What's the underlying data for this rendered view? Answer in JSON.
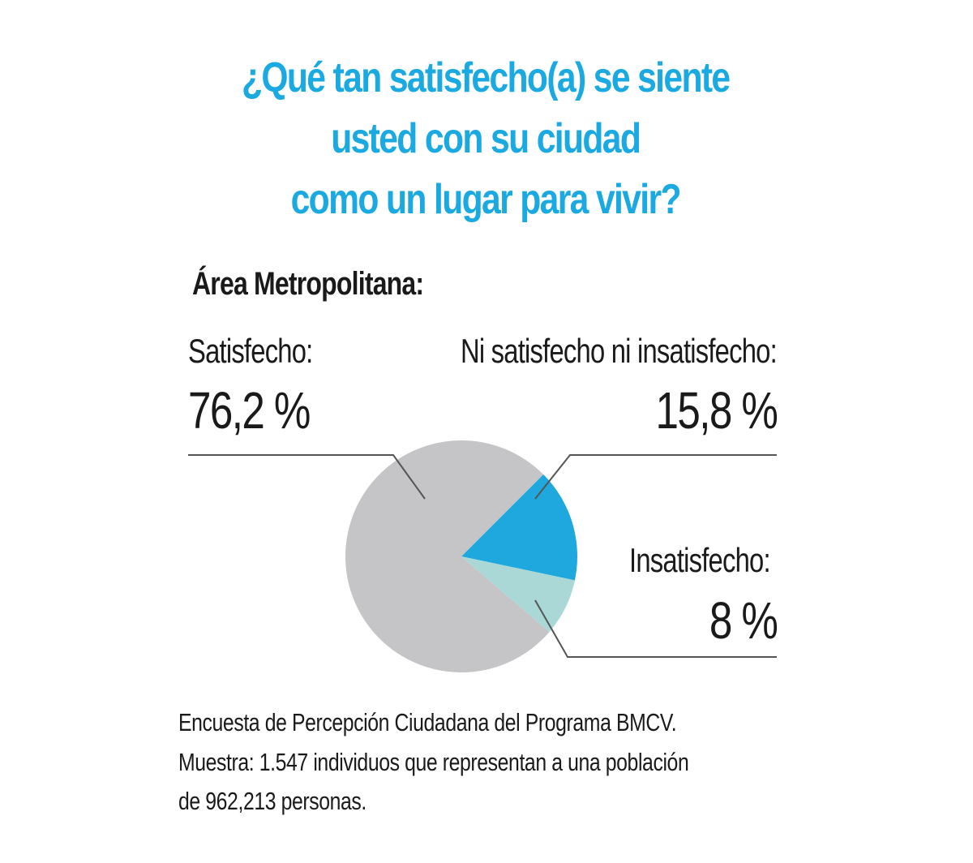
{
  "chart_data": {
    "type": "pie",
    "title": [
      "¿Qué tan satisfecho(a) se siente",
      "usted con su ciudad",
      "como un lugar para vivir?"
    ],
    "subtitle": "Área Metropolitana:",
    "slices": [
      {
        "label": "Satisfecho:",
        "value": 76.2,
        "value_label": "76,2 %",
        "color": "#c5c5c7"
      },
      {
        "label": "Ni satisfecho ni insatisfecho:",
        "value": 15.8,
        "value_label": "15,8 %",
        "color": "#1ea8de"
      },
      {
        "label": "Insatisfecho:",
        "value": 8,
        "value_label": "8 %",
        "color": "#a9d8d6"
      }
    ],
    "footnote": [
      "Encuesta de Percepción Ciudadana del Programa BMCV.",
      "Muestra: 1.547 individuos que representan a una población",
      "de 962,213 personas."
    ]
  },
  "colors": {
    "title": "#1aa9e1",
    "leader": "#555555"
  }
}
